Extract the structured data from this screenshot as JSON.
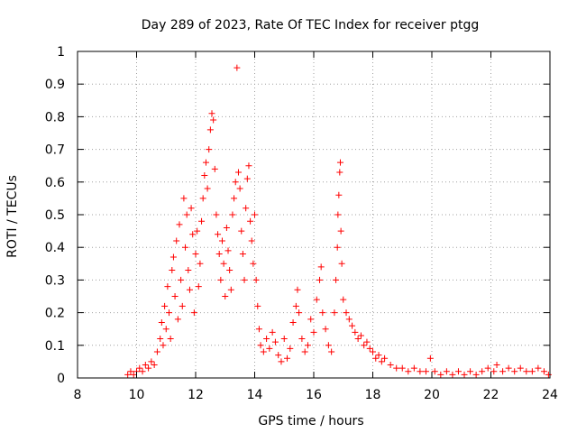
{
  "chart_data": {
    "type": "scatter",
    "title": "Day 289 of 2023, Rate Of TEC Index for receiver ptgg",
    "xlabel": "GPS time / hours",
    "ylabel": "ROTI / TECUs",
    "xlim": [
      8,
      24
    ],
    "ylim": [
      0,
      1
    ],
    "xticks": [
      "8",
      "10",
      "12",
      "14",
      "16",
      "18",
      "20",
      "22",
      "24"
    ],
    "yticks": [
      "0",
      "0.1",
      "0.2",
      "0.3",
      "0.4",
      "0.5",
      "0.6",
      "0.7",
      "0.8",
      "0.9",
      "1"
    ],
    "grid": true,
    "marker": "+",
    "color": "#ff0000",
    "series": [
      {
        "points": [
          [
            9.7,
            0.01
          ],
          [
            9.8,
            0.02
          ],
          [
            9.9,
            0.01
          ],
          [
            10.0,
            0.02
          ],
          [
            10.1,
            0.03
          ],
          [
            10.2,
            0.02
          ],
          [
            10.3,
            0.04
          ],
          [
            10.4,
            0.03
          ],
          [
            10.5,
            0.05
          ],
          [
            10.6,
            0.04
          ],
          [
            10.7,
            0.08
          ],
          [
            10.8,
            0.12
          ],
          [
            10.85,
            0.17
          ],
          [
            10.9,
            0.1
          ],
          [
            10.95,
            0.22
          ],
          [
            11.0,
            0.15
          ],
          [
            11.05,
            0.28
          ],
          [
            11.1,
            0.2
          ],
          [
            11.15,
            0.12
          ],
          [
            11.2,
            0.33
          ],
          [
            11.25,
            0.37
          ],
          [
            11.3,
            0.25
          ],
          [
            11.35,
            0.42
          ],
          [
            11.4,
            0.18
          ],
          [
            11.45,
            0.47
          ],
          [
            11.5,
            0.3
          ],
          [
            11.55,
            0.22
          ],
          [
            11.6,
            0.55
          ],
          [
            11.65,
            0.4
          ],
          [
            11.7,
            0.5
          ],
          [
            11.75,
            0.33
          ],
          [
            11.8,
            0.27
          ],
          [
            11.85,
            0.52
          ],
          [
            11.9,
            0.44
          ],
          [
            11.95,
            0.2
          ],
          [
            12.0,
            0.38
          ],
          [
            12.05,
            0.45
          ],
          [
            12.1,
            0.28
          ],
          [
            12.15,
            0.35
          ],
          [
            12.2,
            0.48
          ],
          [
            12.25,
            0.55
          ],
          [
            12.3,
            0.62
          ],
          [
            12.35,
            0.66
          ],
          [
            12.4,
            0.58
          ],
          [
            12.45,
            0.7
          ],
          [
            12.5,
            0.76
          ],
          [
            12.55,
            0.81
          ],
          [
            12.6,
            0.79
          ],
          [
            12.65,
            0.64
          ],
          [
            12.7,
            0.5
          ],
          [
            12.75,
            0.44
          ],
          [
            12.8,
            0.38
          ],
          [
            12.85,
            0.3
          ],
          [
            12.9,
            0.42
          ],
          [
            12.95,
            0.35
          ],
          [
            13.0,
            0.25
          ],
          [
            13.05,
            0.46
          ],
          [
            13.1,
            0.39
          ],
          [
            13.15,
            0.33
          ],
          [
            13.2,
            0.27
          ],
          [
            13.25,
            0.5
          ],
          [
            13.3,
            0.55
          ],
          [
            13.35,
            0.6
          ],
          [
            13.4,
            0.95
          ],
          [
            13.45,
            0.63
          ],
          [
            13.5,
            0.58
          ],
          [
            13.55,
            0.45
          ],
          [
            13.6,
            0.38
          ],
          [
            13.65,
            0.3
          ],
          [
            13.7,
            0.52
          ],
          [
            13.75,
            0.61
          ],
          [
            13.8,
            0.65
          ],
          [
            13.85,
            0.48
          ],
          [
            13.9,
            0.42
          ],
          [
            13.95,
            0.35
          ],
          [
            14.0,
            0.5
          ],
          [
            14.05,
            0.3
          ],
          [
            14.1,
            0.22
          ],
          [
            14.15,
            0.15
          ],
          [
            14.2,
            0.1
          ],
          [
            14.3,
            0.08
          ],
          [
            14.4,
            0.12
          ],
          [
            14.5,
            0.09
          ],
          [
            14.6,
            0.14
          ],
          [
            14.7,
            0.11
          ],
          [
            14.8,
            0.07
          ],
          [
            14.9,
            0.05
          ],
          [
            15.0,
            0.12
          ],
          [
            15.1,
            0.06
          ],
          [
            15.2,
            0.09
          ],
          [
            15.3,
            0.17
          ],
          [
            15.4,
            0.22
          ],
          [
            15.45,
            0.27
          ],
          [
            15.5,
            0.2
          ],
          [
            15.6,
            0.12
          ],
          [
            15.7,
            0.08
          ],
          [
            15.8,
            0.1
          ],
          [
            15.9,
            0.18
          ],
          [
            16.0,
            0.14
          ],
          [
            16.1,
            0.24
          ],
          [
            16.2,
            0.3
          ],
          [
            16.25,
            0.34
          ],
          [
            16.3,
            0.2
          ],
          [
            16.4,
            0.15
          ],
          [
            16.5,
            0.1
          ],
          [
            16.6,
            0.08
          ],
          [
            16.7,
            0.2
          ],
          [
            16.75,
            0.3
          ],
          [
            16.8,
            0.4
          ],
          [
            16.82,
            0.5
          ],
          [
            16.85,
            0.56
          ],
          [
            16.88,
            0.63
          ],
          [
            16.9,
            0.66
          ],
          [
            16.92,
            0.45
          ],
          [
            16.95,
            0.35
          ],
          [
            17.0,
            0.24
          ],
          [
            17.1,
            0.2
          ],
          [
            17.2,
            0.18
          ],
          [
            17.3,
            0.16
          ],
          [
            17.4,
            0.14
          ],
          [
            17.5,
            0.12
          ],
          [
            17.6,
            0.13
          ],
          [
            17.7,
            0.1
          ],
          [
            17.8,
            0.11
          ],
          [
            17.9,
            0.09
          ],
          [
            18.0,
            0.08
          ],
          [
            18.1,
            0.06
          ],
          [
            18.2,
            0.07
          ],
          [
            18.3,
            0.05
          ],
          [
            18.4,
            0.06
          ],
          [
            18.6,
            0.04
          ],
          [
            18.8,
            0.03
          ],
          [
            19.0,
            0.03
          ],
          [
            19.2,
            0.02
          ],
          [
            19.4,
            0.03
          ],
          [
            19.6,
            0.02
          ],
          [
            19.8,
            0.02
          ],
          [
            19.95,
            0.06
          ],
          [
            20.1,
            0.02
          ],
          [
            20.3,
            0.01
          ],
          [
            20.5,
            0.02
          ],
          [
            20.7,
            0.01
          ],
          [
            20.9,
            0.02
          ],
          [
            21.1,
            0.01
          ],
          [
            21.3,
            0.02
          ],
          [
            21.5,
            0.01
          ],
          [
            21.7,
            0.02
          ],
          [
            21.9,
            0.03
          ],
          [
            22.1,
            0.02
          ],
          [
            22.2,
            0.04
          ],
          [
            22.4,
            0.02
          ],
          [
            22.6,
            0.03
          ],
          [
            22.8,
            0.02
          ],
          [
            23.0,
            0.03
          ],
          [
            23.2,
            0.02
          ],
          [
            23.4,
            0.02
          ],
          [
            23.6,
            0.03
          ],
          [
            23.8,
            0.02
          ],
          [
            23.95,
            0.01
          ]
        ]
      }
    ]
  }
}
